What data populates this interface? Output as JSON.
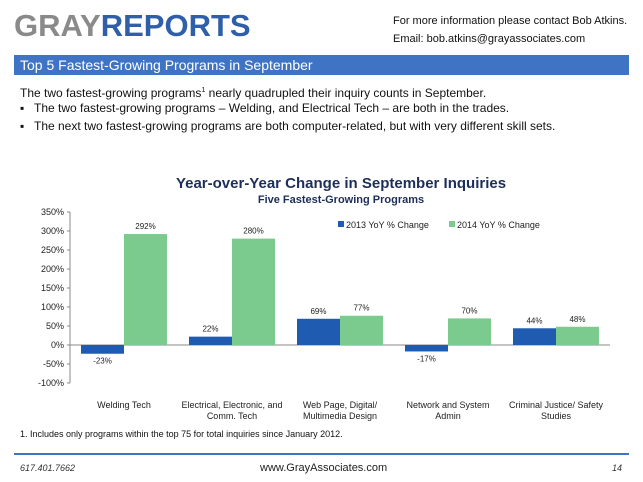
{
  "header": {
    "logo_part1": "GRAY",
    "logo_part2": "REPORTS",
    "contact_line1": "For more information please contact Bob Atkins.",
    "contact_line2": "Email: bob.atkins@grayassociates.com"
  },
  "slide_title": "Top 5 Fastest-Growing Programs in September",
  "intro": {
    "text_before": "The two fastest-growing programs",
    "superscript": "1",
    "text_after": " nearly quadrupled their inquiry counts in September."
  },
  "bullets": [
    "The two fastest-growing programs – Welding, and Electrical Tech – are both in the trades.",
    "The next two fastest-growing programs are both computer-related, but with very different skill sets."
  ],
  "bullet_symbol": "▪",
  "chart_data": {
    "type": "bar",
    "title": "Year-over-Year Change in September Inquiries",
    "subtitle": "Five Fastest-Growing Programs",
    "categories": [
      [
        "Welding Tech"
      ],
      [
        "Electrical, Electronic, and",
        "Comm. Tech"
      ],
      [
        "Web Page, Digital/",
        "Multimedia Design"
      ],
      [
        "Network and System",
        "Admin"
      ],
      [
        "Criminal Justice/ Safety",
        "Studies"
      ]
    ],
    "series": [
      {
        "name": "2013 YoY % Change",
        "color": "#1f5bb0",
        "values": [
          -23,
          22,
          69,
          -17,
          44
        ],
        "labels": [
          "-23%",
          "22%",
          "69%",
          "-17%",
          "44%"
        ]
      },
      {
        "name": "2014 YoY % Change",
        "color": "#7ccb8e",
        "values": [
          292,
          280,
          77,
          70,
          48
        ],
        "labels": [
          "292%",
          "280%",
          "77%",
          "70%",
          "48%"
        ]
      }
    ],
    "ylim": [
      -100,
      350
    ],
    "yticks": [
      -100,
      -50,
      0,
      50,
      100,
      150,
      200,
      250,
      300,
      350
    ],
    "ytick_labels": [
      "-100%",
      "-50%",
      "0%",
      "50%",
      "100%",
      "150%",
      "200%",
      "250%",
      "300%",
      "350%"
    ],
    "legend_position": "top-right",
    "grid": false
  },
  "footnote": "1.  Includes only programs within the top 75 for total inquiries since January 2012.",
  "footer": {
    "phone": "617.401.7662",
    "website": "www.GrayAssociates.com",
    "page": "14"
  }
}
